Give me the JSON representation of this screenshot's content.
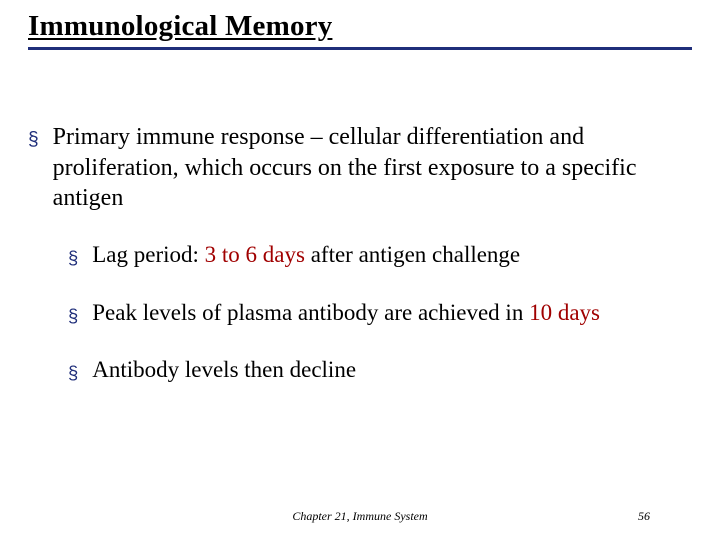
{
  "colors": {
    "accent": "#1f2e7a",
    "red": "#a00000",
    "background": "#ffffff",
    "text": "#000000"
  },
  "typography": {
    "body_family": "Times New Roman",
    "title_fontsize": 29,
    "body_fontsize": 24,
    "sub_fontsize": 23,
    "footer_fontsize": 12
  },
  "title": "Immunological Memory",
  "bullets": [
    {
      "level": 1,
      "segments": [
        {
          "text": "Primary immune response",
          "style": "plain"
        },
        {
          "text": " – cellular differentiation and proliferation, which occurs on the first exposure to a specific antigen",
          "style": "plain"
        }
      ]
    },
    {
      "level": 2,
      "segments": [
        {
          "text": "Lag period: ",
          "style": "plain"
        },
        {
          "text": "3 to 6 days",
          "style": "red"
        },
        {
          "text": " after antigen challenge",
          "style": "plain"
        }
      ]
    },
    {
      "level": 2,
      "segments": [
        {
          "text": "Peak levels of plasma antibody are achieved in ",
          "style": "plain"
        },
        {
          "text": "10 days",
          "style": "red"
        }
      ]
    },
    {
      "level": 2,
      "segments": [
        {
          "text": "Antibody levels then decline",
          "style": "plain"
        }
      ]
    }
  ],
  "footer": {
    "center": "Chapter 21, Immune System",
    "page_number": "56"
  },
  "bullet_marker": "§"
}
